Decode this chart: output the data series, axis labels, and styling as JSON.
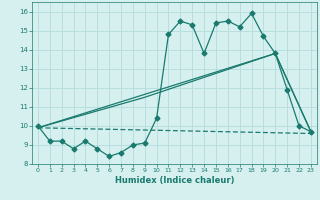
{
  "xlabel": "Humidex (Indice chaleur)",
  "background_color": "#d6f0f0",
  "grid_color": "#b8dede",
  "line_color": "#1a7a6e",
  "xlim": [
    -0.5,
    23.5
  ],
  "ylim": [
    8,
    16.5
  ],
  "xticks": [
    0,
    1,
    2,
    3,
    4,
    5,
    6,
    7,
    8,
    9,
    10,
    11,
    12,
    13,
    14,
    15,
    16,
    17,
    18,
    19,
    20,
    21,
    22,
    23
  ],
  "yticks": [
    8,
    9,
    10,
    11,
    12,
    13,
    14,
    15,
    16
  ],
  "series1_x": [
    0,
    1,
    2,
    3,
    4,
    5,
    6,
    7,
    8,
    9,
    10,
    11,
    12,
    13,
    14,
    15,
    16,
    17,
    18,
    19,
    20,
    21,
    22,
    23
  ],
  "series1_y": [
    10.0,
    9.2,
    9.2,
    8.8,
    9.2,
    8.8,
    8.4,
    8.6,
    9.0,
    9.1,
    10.4,
    14.8,
    15.5,
    15.3,
    13.8,
    15.4,
    15.5,
    15.2,
    15.9,
    14.7,
    13.8,
    11.9,
    10.0,
    9.7
  ],
  "series2_x": [
    0,
    23
  ],
  "series2_y": [
    9.9,
    9.6
  ],
  "series3_x": [
    0,
    9,
    20,
    23
  ],
  "series3_y": [
    9.9,
    11.5,
    13.8,
    9.7
  ],
  "series4_x": [
    0,
    20,
    23
  ],
  "series4_y": [
    9.9,
    13.8,
    9.7
  ]
}
